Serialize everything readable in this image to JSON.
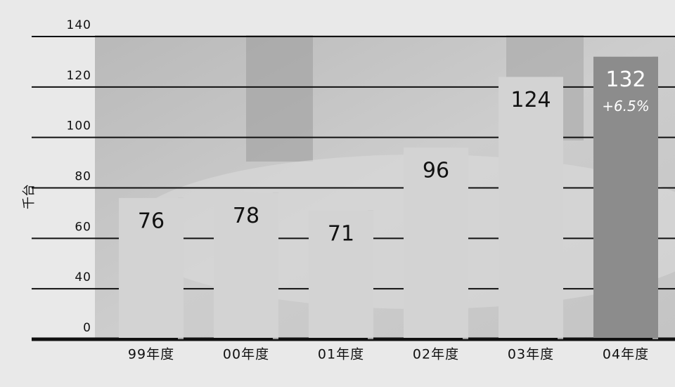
{
  "chart_data": {
    "type": "bar",
    "y_label": "千台",
    "categories": [
      "99年度",
      "00年度",
      "01年度",
      "02年度",
      "03年度",
      "04年度"
    ],
    "values": [
      76,
      78,
      71,
      96,
      124,
      132
    ],
    "colors": [
      "#d3d3d3",
      "#d3d3d3",
      "#d3d3d3",
      "#d3d3d3",
      "#d3d3d3",
      "#8c8c8c"
    ],
    "annotation": "+6.5%",
    "ylim": [
      20,
      140
    ],
    "yticks": [
      {
        "value": 20,
        "label": "0"
      },
      40,
      60,
      80,
      100,
      120,
      140
    ],
    "grid": true
  }
}
